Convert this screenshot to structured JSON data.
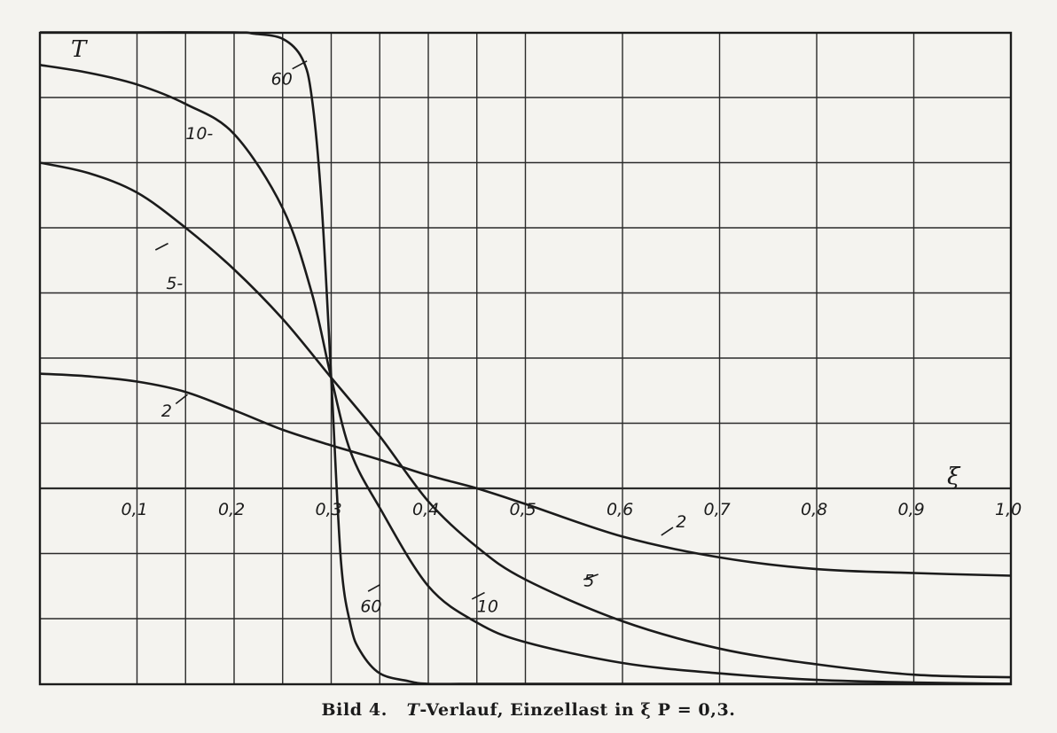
{
  "caption": {
    "prefix": "Bild 4.",
    "symbol": "T",
    "text": "-Verlauf, Einzellast in ξ P = 0,3."
  },
  "chart_data": {
    "type": "line",
    "title": "",
    "xlabel": "ξ",
    "ylabel": "T",
    "xlim": [
      0,
      1.0
    ],
    "ylim": [
      -1.5,
      3.6
    ],
    "grid": true,
    "x_ticks": [
      "0,1",
      "0,2",
      "0,3",
      "0,4",
      "0,5",
      "0,6",
      "0,7",
      "0,8",
      "0,9",
      "1,0"
    ],
    "x_tick_values": [
      0.1,
      0.2,
      0.3,
      0.4,
      0.5,
      0.6,
      0.7,
      0.8,
      0.9,
      1.0
    ],
    "series": [
      {
        "name": "60",
        "x": [
          0,
          0.1,
          0.2,
          0.22,
          0.25,
          0.27,
          0.28,
          0.29,
          0.3,
          0.31,
          0.32,
          0.33,
          0.35,
          0.38,
          0.4,
          0.45,
          0.5,
          0.7,
          1.0
        ],
        "y": [
          3.5,
          3.5,
          3.5,
          3.49,
          3.45,
          3.3,
          3.0,
          2.2,
          0.85,
          -0.55,
          -1.05,
          -1.25,
          -1.42,
          -1.48,
          -1.5,
          -1.5,
          -1.5,
          -1.5,
          -1.5
        ]
      },
      {
        "name": "10",
        "x": [
          0,
          0.05,
          0.1,
          0.15,
          0.2,
          0.25,
          0.28,
          0.3,
          0.32,
          0.35,
          0.4,
          0.45,
          0.5,
          0.6,
          0.7,
          0.8,
          0.9,
          1.0
        ],
        "y": [
          3.25,
          3.19,
          3.1,
          2.95,
          2.72,
          2.15,
          1.5,
          0.85,
          0.28,
          -0.15,
          -0.75,
          -1.03,
          -1.18,
          -1.34,
          -1.42,
          -1.47,
          -1.49,
          -1.5
        ]
      },
      {
        "name": "5",
        "x": [
          0,
          0.05,
          0.1,
          0.15,
          0.2,
          0.25,
          0.3,
          0.35,
          0.4,
          0.45,
          0.5,
          0.6,
          0.7,
          0.8,
          0.9,
          1.0
        ],
        "y": [
          2.5,
          2.42,
          2.27,
          2.0,
          1.68,
          1.3,
          0.85,
          0.4,
          -0.1,
          -0.45,
          -0.7,
          -1.02,
          -1.23,
          -1.35,
          -1.43,
          -1.45
        ]
      },
      {
        "name": "2",
        "x": [
          0,
          0.05,
          0.1,
          0.15,
          0.2,
          0.25,
          0.3,
          0.35,
          0.4,
          0.45,
          0.5,
          0.6,
          0.7,
          0.8,
          0.9,
          1.0
        ],
        "y": [
          0.88,
          0.86,
          0.82,
          0.74,
          0.6,
          0.45,
          0.33,
          0.22,
          0.1,
          0.0,
          -0.12,
          -0.37,
          -0.53,
          -0.62,
          -0.65,
          -0.67
        ]
      }
    ],
    "curve_labels": [
      {
        "text": "60",
        "series": "60",
        "x": 0.238,
        "y": 3.1
      },
      {
        "text": "10-",
        "series": "10",
        "x": 0.15,
        "y": 2.68
      },
      {
        "text": "5-",
        "series": "5",
        "x": 0.13,
        "y": 1.53
      },
      {
        "text": "2",
        "series": "2",
        "x": 0.125,
        "y": 0.55
      },
      {
        "text": "60",
        "series": "60",
        "x": 0.33,
        "y": -0.95
      },
      {
        "text": "10",
        "series": "10",
        "x": 0.45,
        "y": -0.95
      },
      {
        "text": "5",
        "series": "5",
        "x": 0.56,
        "y": -0.75
      },
      {
        "text": "2",
        "series": "2",
        "x": 0.655,
        "y": -0.3
      }
    ]
  }
}
